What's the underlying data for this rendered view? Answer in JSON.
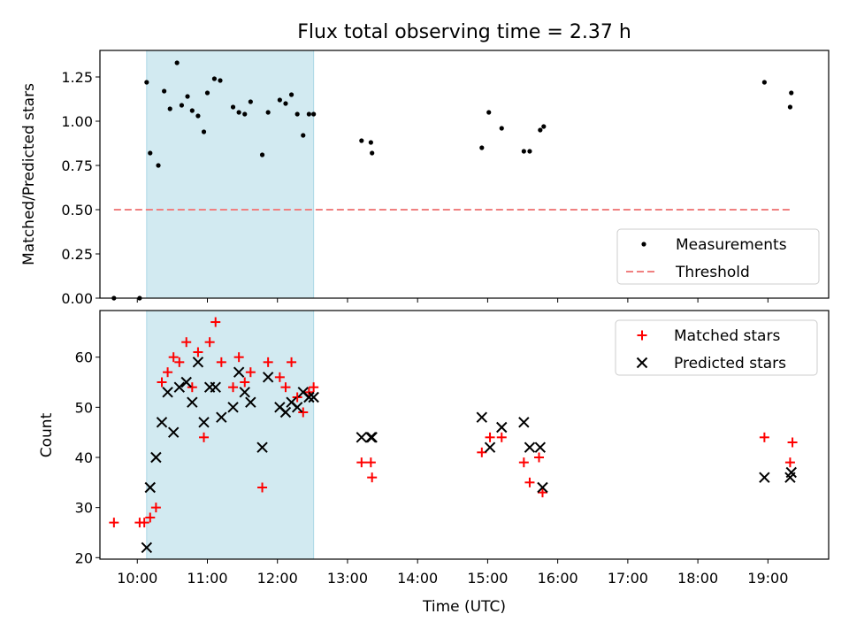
{
  "title": "Flux total observing time = 2.37 h",
  "colors": {
    "matched": "#ff0000",
    "predicted": "#000000",
    "measurement": "#000000",
    "threshold": "#f08080",
    "span": "#add8e6"
  },
  "chart_data": [
    {
      "type": "scatter",
      "panel": "top",
      "title": "Flux total observing time = 2.37 h",
      "xlabel": "",
      "ylabel": "Matched/Predicted stars",
      "xlim": [
        "09:28",
        "19:52"
      ],
      "ylim": [
        0,
        1.4
      ],
      "yticks": [
        0.0,
        0.25,
        0.5,
        0.75,
        1.0,
        1.25
      ],
      "ytick_labels": [
        "0.00",
        "0.25",
        "0.50",
        "0.75",
        "1.00",
        "1.25"
      ],
      "xticks": [
        "10:00",
        "11:00",
        "12:00",
        "13:00",
        "14:00",
        "15:00",
        "16:00",
        "17:00",
        "18:00",
        "19:00"
      ],
      "highlight_span": {
        "start": "10:08",
        "end": "12:31"
      },
      "grid": false,
      "legend": {
        "placement": "bottom-right",
        "entries": [
          "Measurements",
          "Threshold"
        ]
      },
      "series": [
        {
          "name": "Measurements",
          "marker": "dot",
          "points": [
            {
              "t": "09:40",
              "v": 0.0
            },
            {
              "t": "10:02",
              "v": 0.0
            },
            {
              "t": "10:08",
              "v": 1.22
            },
            {
              "t": "10:11",
              "v": 0.82
            },
            {
              "t": "10:18",
              "v": 0.75
            },
            {
              "t": "10:23",
              "v": 1.17
            },
            {
              "t": "10:28",
              "v": 1.07
            },
            {
              "t": "10:34",
              "v": 1.33
            },
            {
              "t": "10:38",
              "v": 1.09
            },
            {
              "t": "10:43",
              "v": 1.14
            },
            {
              "t": "10:47",
              "v": 1.06
            },
            {
              "t": "10:52",
              "v": 1.03
            },
            {
              "t": "10:57",
              "v": 0.94
            },
            {
              "t": "11:00",
              "v": 1.16
            },
            {
              "t": "11:06",
              "v": 1.24
            },
            {
              "t": "11:11",
              "v": 1.23
            },
            {
              "t": "11:22",
              "v": 1.08
            },
            {
              "t": "11:27",
              "v": 1.05
            },
            {
              "t": "11:32",
              "v": 1.04
            },
            {
              "t": "11:37",
              "v": 1.11
            },
            {
              "t": "11:47",
              "v": 0.81
            },
            {
              "t": "11:52",
              "v": 1.05
            },
            {
              "t": "12:02",
              "v": 1.12
            },
            {
              "t": "12:07",
              "v": 1.1
            },
            {
              "t": "12:12",
              "v": 1.15
            },
            {
              "t": "12:17",
              "v": 1.04
            },
            {
              "t": "12:22",
              "v": 0.92
            },
            {
              "t": "12:27",
              "v": 1.04
            },
            {
              "t": "12:31",
              "v": 1.04
            },
            {
              "t": "13:12",
              "v": 0.89
            },
            {
              "t": "13:20",
              "v": 0.88
            },
            {
              "t": "13:21",
              "v": 0.82
            },
            {
              "t": "14:55",
              "v": 0.85
            },
            {
              "t": "15:01",
              "v": 1.05
            },
            {
              "t": "15:12",
              "v": 0.96
            },
            {
              "t": "15:31",
              "v": 0.83
            },
            {
              "t": "15:36",
              "v": 0.83
            },
            {
              "t": "15:45",
              "v": 0.95
            },
            {
              "t": "15:48",
              "v": 0.97
            },
            {
              "t": "18:57",
              "v": 1.22
            },
            {
              "t": "19:20",
              "v": 1.16
            },
            {
              "t": "19:19",
              "v": 1.08
            }
          ]
        },
        {
          "name": "Threshold",
          "style": "dashed",
          "points": [
            {
              "t": "09:40",
              "v": 0.5
            },
            {
              "t": "19:20",
              "v": 0.5
            }
          ]
        }
      ]
    },
    {
      "type": "scatter",
      "panel": "bottom",
      "xlabel": "Time (UTC)",
      "ylabel": "Count",
      "xlim": [
        "09:28",
        "19:52"
      ],
      "ylim": [
        19.7,
        69.3
      ],
      "yticks": [
        20,
        30,
        40,
        50,
        60
      ],
      "ytick_labels": [
        "20",
        "30",
        "40",
        "50",
        "60"
      ],
      "xticks": [
        "10:00",
        "11:00",
        "12:00",
        "13:00",
        "14:00",
        "15:00",
        "16:00",
        "17:00",
        "18:00",
        "19:00"
      ],
      "highlight_span": {
        "start": "10:08",
        "end": "12:31"
      },
      "grid": false,
      "legend": {
        "placement": "top-right",
        "entries": [
          "Matched stars",
          "Predicted stars"
        ]
      },
      "series": [
        {
          "name": "Matched stars",
          "marker": "plus",
          "points": [
            {
              "t": "09:40",
              "v": 27
            },
            {
              "t": "10:02",
              "v": 27
            },
            {
              "t": "10:06",
              "v": 27
            },
            {
              "t": "10:11",
              "v": 28
            },
            {
              "t": "10:16",
              "v": 30
            },
            {
              "t": "10:21",
              "v": 55
            },
            {
              "t": "10:26",
              "v": 57
            },
            {
              "t": "10:31",
              "v": 60
            },
            {
              "t": "10:36",
              "v": 59
            },
            {
              "t": "10:42",
              "v": 63
            },
            {
              "t": "10:47",
              "v": 54
            },
            {
              "t": "10:52",
              "v": 61
            },
            {
              "t": "10:57",
              "v": 44
            },
            {
              "t": "11:02",
              "v": 63
            },
            {
              "t": "11:07",
              "v": 67
            },
            {
              "t": "11:12",
              "v": 59
            },
            {
              "t": "11:22",
              "v": 54
            },
            {
              "t": "11:27",
              "v": 60
            },
            {
              "t": "11:32",
              "v": 55
            },
            {
              "t": "11:37",
              "v": 57
            },
            {
              "t": "11:47",
              "v": 34
            },
            {
              "t": "11:52",
              "v": 59
            },
            {
              "t": "12:02",
              "v": 56
            },
            {
              "t": "12:07",
              "v": 54
            },
            {
              "t": "12:12",
              "v": 59
            },
            {
              "t": "12:17",
              "v": 52
            },
            {
              "t": "12:22",
              "v": 49
            },
            {
              "t": "12:27",
              "v": 53
            },
            {
              "t": "12:31",
              "v": 54
            },
            {
              "t": "13:12",
              "v": 39
            },
            {
              "t": "13:20",
              "v": 39
            },
            {
              "t": "13:21",
              "v": 36
            },
            {
              "t": "14:55",
              "v": 41
            },
            {
              "t": "15:02",
              "v": 44
            },
            {
              "t": "15:12",
              "v": 44
            },
            {
              "t": "15:31",
              "v": 39
            },
            {
              "t": "15:36",
              "v": 35
            },
            {
              "t": "15:44",
              "v": 40
            },
            {
              "t": "15:47",
              "v": 33
            },
            {
              "t": "18:57",
              "v": 44
            },
            {
              "t": "19:19",
              "v": 39
            },
            {
              "t": "19:21",
              "v": 43
            }
          ]
        },
        {
          "name": "Predicted stars",
          "marker": "x",
          "points": [
            {
              "t": "10:08",
              "v": 22
            },
            {
              "t": "10:11",
              "v": 34
            },
            {
              "t": "10:16",
              "v": 40
            },
            {
              "t": "10:21",
              "v": 47
            },
            {
              "t": "10:26",
              "v": 53
            },
            {
              "t": "10:31",
              "v": 45
            },
            {
              "t": "10:36",
              "v": 54
            },
            {
              "t": "10:42",
              "v": 55
            },
            {
              "t": "10:47",
              "v": 51
            },
            {
              "t": "10:52",
              "v": 59
            },
            {
              "t": "10:57",
              "v": 47
            },
            {
              "t": "11:02",
              "v": 54
            },
            {
              "t": "11:07",
              "v": 54
            },
            {
              "t": "11:12",
              "v": 48
            },
            {
              "t": "11:22",
              "v": 50
            },
            {
              "t": "11:27",
              "v": 57
            },
            {
              "t": "11:32",
              "v": 53
            },
            {
              "t": "11:37",
              "v": 51
            },
            {
              "t": "11:47",
              "v": 42
            },
            {
              "t": "11:52",
              "v": 56
            },
            {
              "t": "12:02",
              "v": 50
            },
            {
              "t": "12:07",
              "v": 49
            },
            {
              "t": "12:12",
              "v": 51
            },
            {
              "t": "12:17",
              "v": 50
            },
            {
              "t": "12:22",
              "v": 53
            },
            {
              "t": "12:27",
              "v": 52
            },
            {
              "t": "12:31",
              "v": 52
            },
            {
              "t": "13:12",
              "v": 44
            },
            {
              "t": "13:20",
              "v": 44
            },
            {
              "t": "13:21",
              "v": 44
            },
            {
              "t": "14:55",
              "v": 48
            },
            {
              "t": "15:02",
              "v": 42
            },
            {
              "t": "15:12",
              "v": 46
            },
            {
              "t": "15:31",
              "v": 47
            },
            {
              "t": "15:36",
              "v": 42
            },
            {
              "t": "15:45",
              "v": 42
            },
            {
              "t": "15:47",
              "v": 34
            },
            {
              "t": "18:57",
              "v": 36
            },
            {
              "t": "19:19",
              "v": 36
            },
            {
              "t": "19:20",
              "v": 37
            }
          ]
        }
      ]
    }
  ]
}
